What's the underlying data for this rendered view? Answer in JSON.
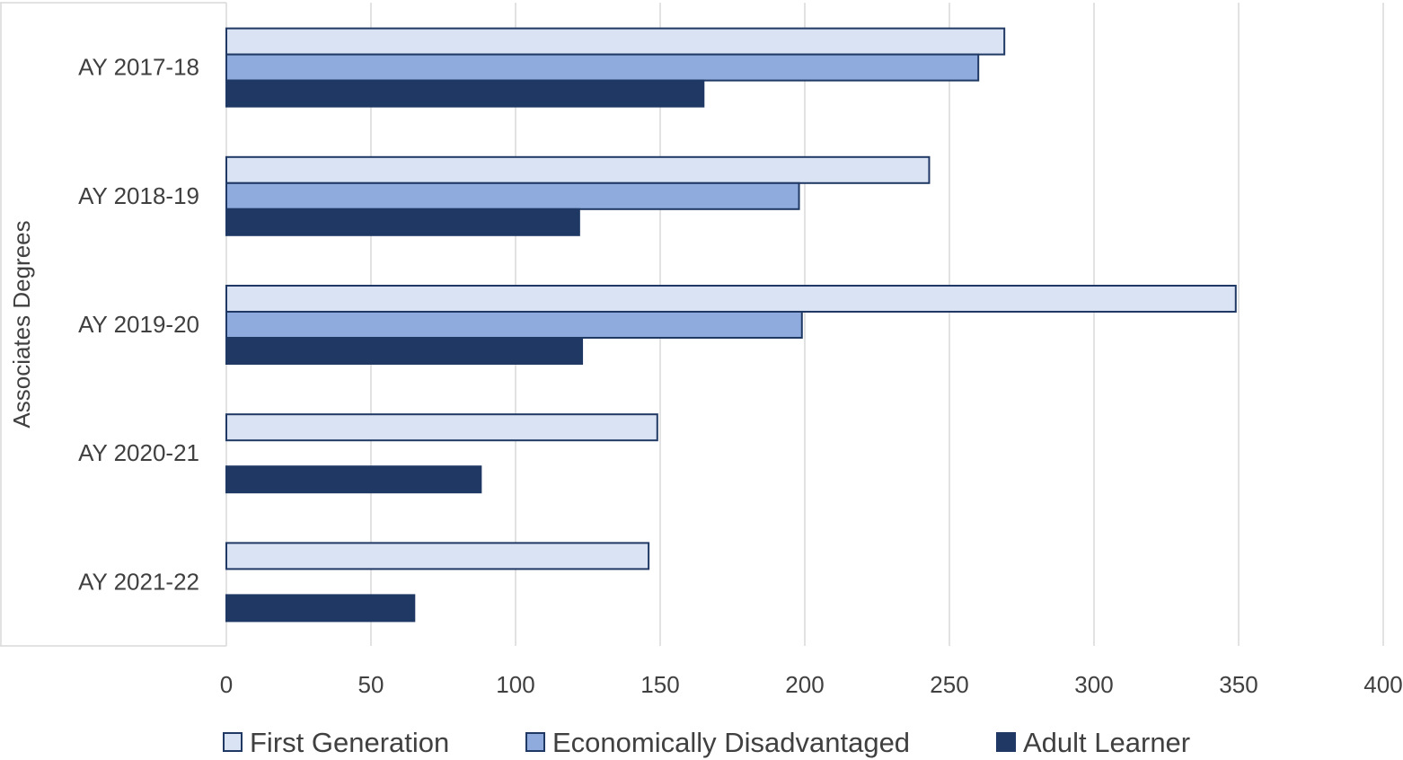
{
  "chart_data": {
    "type": "bar",
    "orientation": "horizontal",
    "title": "",
    "ylabel": "Associates Degrees",
    "xlabel": "",
    "categories": [
      "AY 2017-18",
      "AY 2018-19",
      "AY 2019-20",
      "AY 2020-21",
      "AY 2021-22"
    ],
    "series": [
      {
        "name": "First Generation",
        "values": [
          269,
          243,
          349,
          149,
          146
        ],
        "color": "#dae3f3"
      },
      {
        "name": "Economically Disadvantaged",
        "values": [
          260,
          198,
          199,
          null,
          null
        ],
        "color": "#8faadc"
      },
      {
        "name": "Adult Learner",
        "values": [
          165,
          122,
          123,
          88,
          65
        ],
        "color": "#1f3864"
      }
    ],
    "xlim": [
      0,
      400
    ],
    "xticks": [
      0,
      50,
      100,
      150,
      200,
      250,
      300,
      350,
      400
    ],
    "grid": true,
    "legend_position": "bottom",
    "border_color": "#1f3864",
    "grid_color": "#d9d9d9"
  }
}
